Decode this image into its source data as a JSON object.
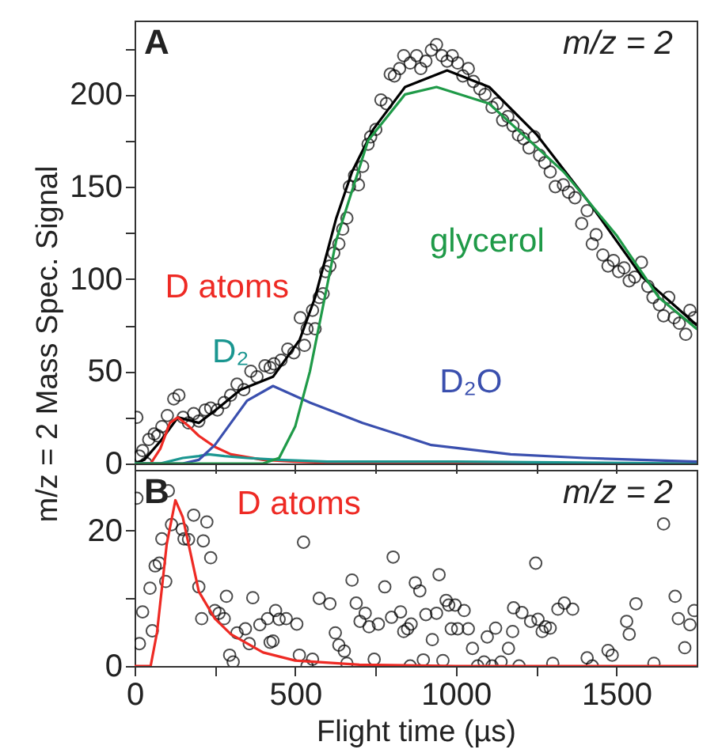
{
  "chart_data": [
    {
      "type": "line",
      "ylabel": "m/z = 2 Mass Spec. Signal",
      "annotations": [
        "A",
        "m/z = 2"
      ],
      "xlim": [
        0,
        1750
      ],
      "xticks": [
        0,
        {
          "value": 250,
          "label": null
        },
        500,
        {
          "value": 750,
          "label": null
        },
        1000,
        {
          "value": 1250,
          "label": null
        },
        1500
      ],
      "ylim": [
        0,
        240
      ],
      "yticks": [
        0,
        {
          "value": 25,
          "label": null
        },
        50,
        {
          "value": 75,
          "label": null
        },
        100,
        {
          "value": 125,
          "label": null
        },
        150,
        {
          "value": 175,
          "label": null
        },
        200,
        {
          "value": 225,
          "label": null
        }
      ],
      "tick_labels": "y",
      "grid": false,
      "series": [
        {
          "type": "scatter",
          "marker": "circle",
          "color": "#000000",
          "x": [
            7,
            15,
            25,
            36,
            44,
            61,
            72,
            85,
            102,
            122,
            138,
            151,
            168,
            184,
            200,
            220,
            237,
            258,
            279,
            299,
            319,
            340,
            362,
            381,
            406,
            422,
            434,
            456,
            477,
            496,
            516,
            529,
            537,
            554,
            562,
            575,
            587,
            595,
            608,
            620,
            636,
            648,
            661,
            669,
            685,
            697,
            710,
            727,
            735,
            751,
            767,
            784,
            796,
            809,
            825,
            838,
            858,
            878,
            891,
            907,
            924,
            940,
            957,
            973,
            989,
            1006,
            1022,
            1039,
            1055,
            1075,
            1091,
            1113,
            1129,
            1146,
            1162,
            1178,
            1195,
            1211,
            1228,
            1244,
            1261,
            1277,
            1294,
            1310,
            1335,
            1351,
            1371,
            1392,
            1409,
            1425,
            1437,
            1458,
            1474,
            1491,
            1507,
            1524,
            1540,
            1557,
            1578,
            1598,
            1614,
            1634,
            1647,
            1663,
            1680,
            1696,
            1716,
            1729,
            1742
          ],
          "values": [
            25,
            4,
            7,
            0,
            13,
            16,
            15,
            20,
            26,
            35,
            37,
            25,
            22,
            27,
            23,
            29,
            30,
            29,
            33,
            37,
            43,
            40,
            50,
            47,
            53,
            52,
            54,
            56,
            62,
            60,
            79,
            64,
            73,
            83,
            73,
            90,
            92,
            104,
            107,
            114,
            119,
            127,
            133,
            150,
            156,
            151,
            161,
            173,
            177,
            181,
            197,
            195,
            211,
            210,
            214,
            221,
            217,
            221,
            214,
            218,
            224,
            227,
            221,
            218,
            221,
            217,
            210,
            214,
            207,
            203,
            200,
            193,
            195,
            186,
            188,
            183,
            178,
            176,
            171,
            177,
            167,
            163,
            158,
            150,
            151,
            147,
            144,
            130,
            137,
            119,
            124,
            113,
            107,
            110,
            104,
            106,
            99,
            101,
            109,
            96,
            90,
            86,
            80,
            90,
            79,
            76,
            70,
            83,
            79
          ]
        },
        {
          "color": "#000000",
          "x": [
            0,
            30,
            80,
            135,
            200,
            260,
            330,
            431,
            514,
            562,
            628,
            677,
            743,
            842,
            973,
            1104,
            1253,
            1417,
            1581,
            1750
          ],
          "values": [
            0,
            2,
            12,
            25,
            22,
            30,
            40,
            47,
            67,
            90,
            133,
            158,
            181,
            204,
            213,
            204,
            178,
            141,
            101,
            75
          ]
        },
        {
          "name": "D atoms",
          "color": "#ee2a24",
          "x": [
            0,
            50,
            80,
            110,
            135,
            170,
            200,
            250,
            300,
            400,
            500,
            700,
            1000,
            1750
          ],
          "values": [
            0,
            0,
            8,
            22,
            25,
            20,
            15,
            9,
            5,
            2,
            1,
            0,
            0,
            0
          ]
        },
        {
          "name": "D₂",
          "color": "#1a9690",
          "x": [
            0,
            80,
            150,
            200,
            230,
            280,
            350,
            450,
            600,
            1000,
            1750
          ],
          "values": [
            0,
            0,
            3,
            4,
            5,
            4,
            3,
            2,
            1,
            1,
            0
          ]
        },
        {
          "name": "D₂O",
          "color": "#3a4fae",
          "x": [
            0,
            150,
            200,
            250,
            300,
            350,
            431,
            546,
            710,
            924,
            1171,
            1400,
            1750
          ],
          "values": [
            0,
            0,
            2,
            10,
            22,
            34,
            42,
            33,
            22,
            10,
            5,
            3,
            1
          ]
        },
        {
          "name": "glycerol",
          "color": "#1f9a48",
          "x": [
            0,
            400,
            450,
            500,
            546,
            628,
            727,
            842,
            940,
            1104,
            1336,
            1499,
            1632,
            1750
          ],
          "values": [
            0,
            0,
            3,
            20,
            50,
            121,
            175,
            200,
            204,
            195,
            158,
            124,
            90,
            73
          ]
        }
      ]
    },
    {
      "type": "line",
      "xlabel": "Flight time (µs)",
      "annotations": [
        "B",
        "m/z = 2"
      ],
      "xlim": [
        0,
        1750
      ],
      "xticks": [
        0,
        {
          "value": 250,
          "label": null
        },
        500,
        {
          "value": 750,
          "label": null
        },
        1000,
        {
          "value": 1250,
          "label": null
        },
        1500
      ],
      "ylim": [
        0,
        29
      ],
      "yticks": [
        0,
        {
          "value": 10,
          "label": null
        },
        20
      ],
      "grid": false,
      "series": [
        {
          "type": "scatter",
          "color": "#000000",
          "x": [
            7,
            15,
            25,
            48,
            55,
            64,
            77,
            85,
            97,
            105,
            115,
            148,
            154,
            168,
            184,
            200,
            209,
            214,
            225,
            237,
            250,
            263,
            279,
            286,
            296,
            307,
            319,
            345,
            357,
            368,
            390,
            414,
            422,
            431,
            439,
            450,
            472,
            505,
            513,
            526,
            537,
            554,
            575,
            608,
            625,
            636,
            653,
            661,
            677,
            690,
            702,
            718,
            730,
            746,
            759,
            779,
            800,
            805,
            828,
            838,
            850,
            858,
            861,
            874,
            888,
            899,
            907,
            927,
            940,
            948,
            960,
            970,
            978,
            986,
            998,
            1006,
            1026,
            1039,
            1052,
            1068,
            1088,
            1098,
            1113,
            1124,
            1141,
            1164,
            1177,
            1180,
            1197,
            1206,
            1233,
            1249,
            1256,
            1269,
            1279,
            1294,
            1302,
            1318,
            1338,
            1364,
            1409,
            1425,
            1474,
            1487,
            1532,
            1540,
            1561,
            1617,
            1647,
            1683,
            1693,
            1713,
            1729,
            1742
          ],
          "values": [
            24.8,
            3.3,
            8,
            11.5,
            5.2,
            14.8,
            15.2,
            18.8,
            12.5,
            25.9,
            20.9,
            20.2,
            18.8,
            18.7,
            22.3,
            11.7,
            7,
            18.5,
            21.3,
            16,
            8.2,
            7.8,
            7,
            10.3,
            1.6,
            0.6,
            4.9,
            5.5,
            3.3,
            10.1,
            6.1,
            7,
            3.5,
            3.7,
            8.2,
            6.9,
            7,
            6.2,
            1.6,
            18.3,
            0,
            1,
            10,
            9.2,
            4.9,
            3.1,
            2.2,
            0.4,
            12.7,
            9.3,
            6.6,
            7.8,
            5.8,
            1,
            6.2,
            11.7,
            7.2,
            16.1,
            8,
            5.1,
            5.5,
            0,
            6.2,
            12.3,
            11.1,
            0.9,
            7.6,
            3.9,
            7.8,
            13.5,
            0.8,
            9.7,
            9,
            5.5,
            9,
            5.5,
            8.2,
            5.5,
            2.6,
            0,
            0.6,
            4.3,
            0,
            5.6,
            0.6,
            2.6,
            5.1,
            8.6,
            0,
            7.9,
            6.6,
            15.2,
            6.9,
            5.1,
            5.8,
            5.6,
            0.4,
            8.4,
            9.3,
            8.4,
            1.2,
            0,
            2.3,
            1.6,
            6.6,
            4.7,
            9.2,
            0.4,
            21,
            10.3,
            7,
            2.7,
            6.1,
            8.2
          ]
        },
        {
          "name": "D atoms",
          "color": "#ee2a24",
          "x": [
            0,
            50,
            70,
            100,
            127,
            150,
            200,
            250,
            300,
            400,
            500,
            700,
            1000,
            1750
          ],
          "values": [
            0,
            0,
            5,
            18,
            24.5,
            22,
            11,
            7,
            4.7,
            2,
            0.8,
            0.2,
            0,
            0
          ]
        }
      ]
    }
  ]
}
